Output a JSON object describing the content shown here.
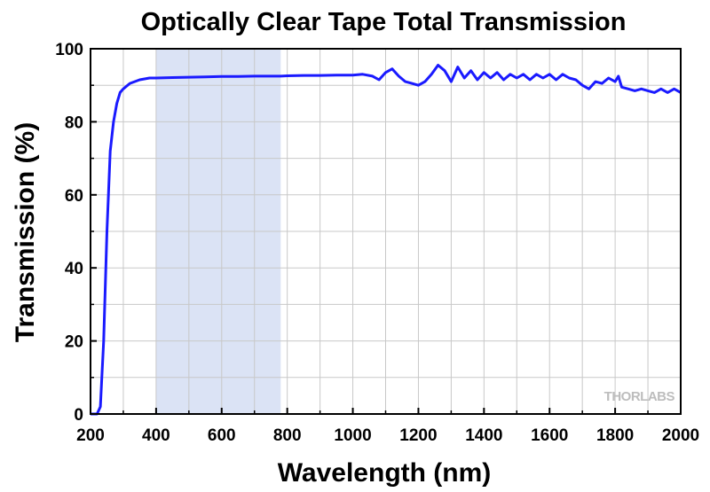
{
  "chart_data": {
    "type": "line",
    "title": "Optically Clear Tape Total Transmission",
    "xlabel": "Wavelength (nm)",
    "ylabel": "Transmission (%)",
    "xlim": [
      200,
      2000
    ],
    "ylim": [
      0,
      100
    ],
    "x_ticks": [
      200,
      400,
      600,
      800,
      1000,
      1200,
      1400,
      1600,
      1800,
      2000
    ],
    "y_ticks": [
      0,
      20,
      40,
      60,
      80,
      100
    ],
    "grid": true,
    "highlight_band": {
      "x_start": 400,
      "x_end": 780,
      "color": "#dbe3f5"
    },
    "line_color": "#1a1aff",
    "watermark": "THORLABS",
    "series": [
      {
        "x": [
          200,
          220,
          230,
          240,
          250,
          260,
          270,
          280,
          290,
          300,
          320,
          350,
          380,
          400,
          450,
          500,
          550,
          600,
          650,
          700,
          750,
          780,
          800,
          850,
          900,
          950,
          1000,
          1030,
          1060,
          1080,
          1100,
          1120,
          1140,
          1160,
          1180,
          1200,
          1220,
          1240,
          1260,
          1280,
          1300,
          1320,
          1340,
          1360,
          1380,
          1400,
          1420,
          1440,
          1460,
          1480,
          1500,
          1520,
          1540,
          1560,
          1580,
          1600,
          1620,
          1640,
          1660,
          1680,
          1700,
          1720,
          1740,
          1760,
          1780,
          1800,
          1810,
          1820,
          1840,
          1860,
          1880,
          1900,
          1920,
          1940,
          1960,
          1980,
          2000
        ],
        "y": [
          0,
          0,
          2,
          20,
          50,
          72,
          80,
          85,
          88,
          89,
          90.5,
          91.5,
          92,
          92,
          92.1,
          92.2,
          92.3,
          92.4,
          92.4,
          92.5,
          92.5,
          92.5,
          92.6,
          92.7,
          92.7,
          92.8,
          92.8,
          93,
          92.5,
          91.5,
          93.5,
          94.5,
          92.5,
          91,
          90.5,
          90,
          91,
          93,
          95.5,
          94,
          91,
          95,
          92,
          94,
          91.5,
          93.5,
          92,
          93.5,
          91.5,
          93,
          92,
          93,
          91.5,
          93,
          92,
          93,
          91.5,
          93,
          92,
          91.5,
          90,
          89,
          91,
          90.5,
          92,
          91,
          92.5,
          89.5,
          89,
          88.5,
          89,
          88.5,
          88,
          89,
          88,
          89,
          88
        ]
      }
    ]
  }
}
